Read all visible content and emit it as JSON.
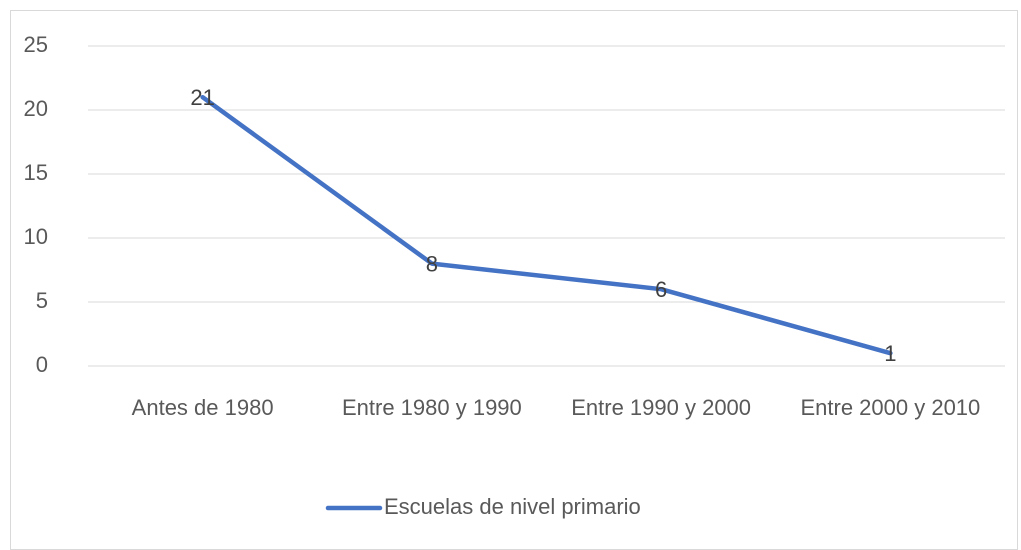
{
  "chart_data": {
    "type": "line",
    "categories": [
      "Antes de 1980",
      "Entre 1980 y 1990",
      "Entre 1990 y 2000",
      "Entre 2000 y 2010"
    ],
    "series": [
      {
        "name": "Escuelas de nivel primario",
        "color": "#4472c4",
        "values": [
          21,
          8,
          6,
          1
        ]
      }
    ],
    "ylim": [
      0,
      25
    ],
    "yticks": [
      0,
      5,
      10,
      15,
      20,
      25
    ],
    "grid": true,
    "data_labels": true,
    "legend": "bottom"
  }
}
